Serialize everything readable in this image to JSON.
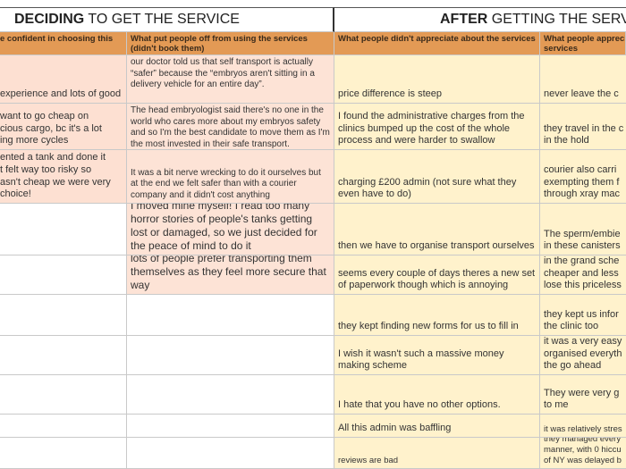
{
  "sections": [
    {
      "bold": "DECIDING",
      "rest": " TO GET THE SERVICE"
    },
    {
      "bold": "AFTER",
      "rest": " GETTING THE SERVI"
    }
  ],
  "headers": [
    [
      "e confident in choosing this"
    ],
    [
      "What put people off from using the services (didn't book them)"
    ],
    [
      "What people didn't appreciate about the services"
    ],
    [
      "What people appreci",
      "services"
    ]
  ],
  "rows": [
    {
      "a": [
        "experience and lots of good"
      ],
      "b": "our doctor told us that self transport is actually “safer” because the “embryos aren't sitting in a delivery vehicle for an entire day”.",
      "c": "price difference is steep",
      "d": [
        "never leave the c"
      ]
    },
    {
      "a": [
        "want to go cheap on",
        "cious cargo, bc it's a lot",
        "ing more cycles"
      ],
      "b": "The head embryologist said there's no one in the world who cares more about my embryos safety and so I'm the best candidate to move them as I'm the most invested in their safe transport.",
      "c": "I found the administrative charges from the clinics bumped up the cost of the whole process and were harder to swallow",
      "d": [
        "they travel in the c",
        "in the hold"
      ]
    },
    {
      "a": [
        "ented a tank and done it",
        "t felt way too risky so",
        "asn't cheap we were very",
        "choice!"
      ],
      "b": "It was a bit nerve wrecking to do it ourselves but at the end we felt safer than with a courier company and it didn't cost anything",
      "c": "charging £200 admin (not sure what they even have to do)",
      "d": [
        "courier also carri",
        "exempting them f",
        "through xray mac"
      ]
    },
    {
      "a": [],
      "b": "I moved mine myself! I read too many horror stories of people's tanks getting lost or damaged, so we just decided for the peace of mind to do it",
      "c": "then we have to organise transport ourselves",
      "d": [
        "The sperm/embie",
        "in these canisters"
      ]
    },
    {
      "a": [],
      "b": "lots of people prefer transporting them themselves as they feel more secure that way",
      "c": "seems every couple of days theres a new set of paperwork though which is annoying",
      "d": [
        "in the grand sche",
        "cheaper and less",
        "lose this priceless"
      ]
    },
    {
      "a": [],
      "b": "",
      "c": "they kept finding new forms for us to fill in",
      "d": [
        "they kept us infor",
        "the clinic too"
      ]
    },
    {
      "a": [],
      "b": "",
      "c": "I wish it wasn't such a massive money making scheme",
      "d": [
        "it was a very easy",
        "organised everyth",
        "the go ahead"
      ]
    },
    {
      "a": [],
      "b": "",
      "c": "I hate that you have no other options.",
      "d": [
        "They were very g",
        "to me"
      ]
    },
    {
      "a": [],
      "b": "",
      "c": "All this admin was baffling",
      "d": [
        "it was relatively stres"
      ]
    },
    {
      "a": [],
      "b": "",
      "c": "reviews are bad",
      "d": [
        "they managed every",
        "manner, with 0 hiccu",
        "of NY was delayed b"
      ]
    }
  ]
}
